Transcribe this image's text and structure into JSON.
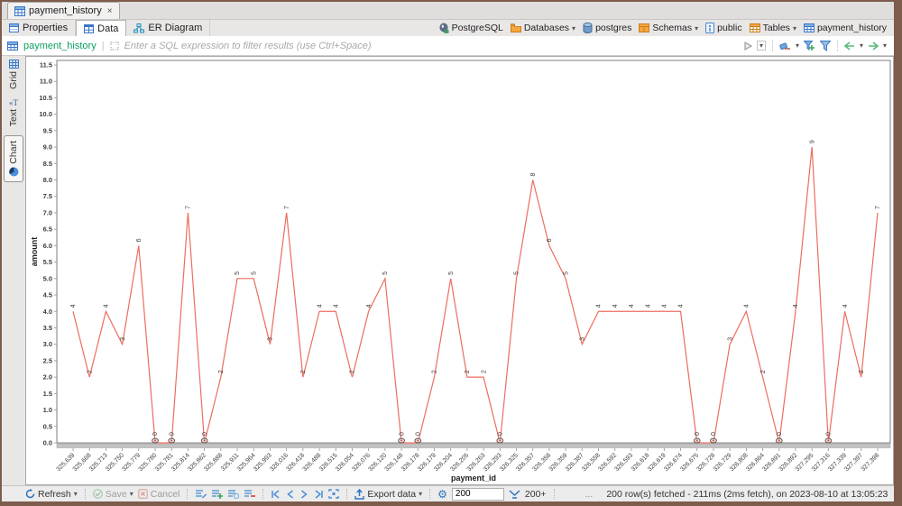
{
  "window": {
    "tab_title": "payment_history",
    "close_glyph": "×"
  },
  "subtabs": {
    "properties": "Properties",
    "data": "Data",
    "er_diagram": "ER Diagram"
  },
  "breadcrumb": {
    "items": [
      {
        "label": "PostgreSQL",
        "icon": "postgresql-icon",
        "dropdown": false
      },
      {
        "label": "Databases",
        "icon": "databases-folder-icon",
        "dropdown": true
      },
      {
        "label": "postgres",
        "icon": "database-icon",
        "dropdown": false
      },
      {
        "label": "Schemas",
        "icon": "schemas-folder-icon",
        "dropdown": true
      },
      {
        "label": "public",
        "icon": "schema-icon",
        "dropdown": false
      },
      {
        "label": "Tables",
        "icon": "tables-folder-icon",
        "dropdown": true
      },
      {
        "label": "payment_history",
        "icon": "table-icon",
        "dropdown": false
      }
    ]
  },
  "filter_bar": {
    "table_name": "payment_history",
    "placeholder": "Enter a SQL expression to filter results (use Ctrl+Space)"
  },
  "side_tabs": {
    "grid": "Grid",
    "text": "Text",
    "chart": "Chart"
  },
  "toolbar": {
    "refresh_label": "Refresh",
    "save_label": "Save",
    "cancel_label": "Cancel",
    "export_label": "Export data",
    "fetch_size_value": "200",
    "fetch_more_label": "200+",
    "ellipsis": "...",
    "status_text": "200 row(s) fetched - 211ms (2ms fetch), on 2023-08-10 at 13:05:23"
  },
  "chart_data": {
    "type": "line",
    "title": "",
    "xlabel": "payment_id",
    "ylabel": "amount",
    "ylim": [
      0,
      11.5
    ],
    "ytick_step": 0.5,
    "grid": false,
    "legend": "none",
    "line_color": "#ed6d5f",
    "label_color": "#3c3c3c",
    "categories": [
      "325,639",
      "325,668",
      "325,713",
      "325,750",
      "325,779",
      "325,780",
      "325,781",
      "325,814",
      "325,862",
      "325,888",
      "325,911",
      "325,964",
      "325,993",
      "326,016",
      "326,418",
      "326,488",
      "326,515",
      "326,054",
      "326,076",
      "326,120",
      "326,148",
      "326,178",
      "326,179",
      "326,204",
      "326,205",
      "326,263",
      "326,293",
      "326,325",
      "326,357",
      "326,358",
      "326,359",
      "326,387",
      "326,558",
      "326,592",
      "326,593",
      "326,618",
      "326,619",
      "326,674",
      "326,675",
      "326,728",
      "326,729",
      "326,808",
      "326,864",
      "326,891",
      "326,892",
      "327,295",
      "327,316",
      "327,339",
      "327,397",
      "327,398"
    ],
    "values": [
      4,
      2,
      4,
      3,
      6,
      0,
      0,
      7,
      0,
      2,
      5,
      5,
      3,
      7,
      2,
      4,
      4,
      2,
      4,
      5,
      0,
      0,
      2,
      5,
      2,
      2,
      0,
      5,
      8,
      6,
      5,
      3,
      4,
      4,
      4,
      4,
      4,
      4,
      0,
      0,
      3,
      4,
      2,
      0,
      4,
      9,
      0,
      4,
      2,
      7
    ]
  }
}
